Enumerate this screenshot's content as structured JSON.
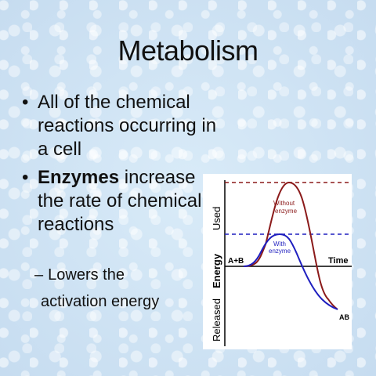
{
  "slide": {
    "title": "Metabolism",
    "bullet1": "All of the chemical reactions occurring in a cell",
    "bullet2_bold": "Enzymes",
    "bullet2_rest": " increase the rate of chemical reactions",
    "sub_line1": "Lowers the",
    "sub_line2": "activation energy"
  },
  "diagram": {
    "axis_y_released": "Released",
    "axis_y_energy": "Energy",
    "axis_y_used": "Used",
    "label_reactants": "A+B",
    "label_product": "AB",
    "label_time": "Time",
    "label_without_1": "Without",
    "label_without_2": "enzyme",
    "label_with_1": "With",
    "label_with_2": "enzyme",
    "colors": {
      "without_enzyme": "#8b1a1a",
      "with_enzyme": "#1f1fbf",
      "axis": "#000000"
    }
  }
}
